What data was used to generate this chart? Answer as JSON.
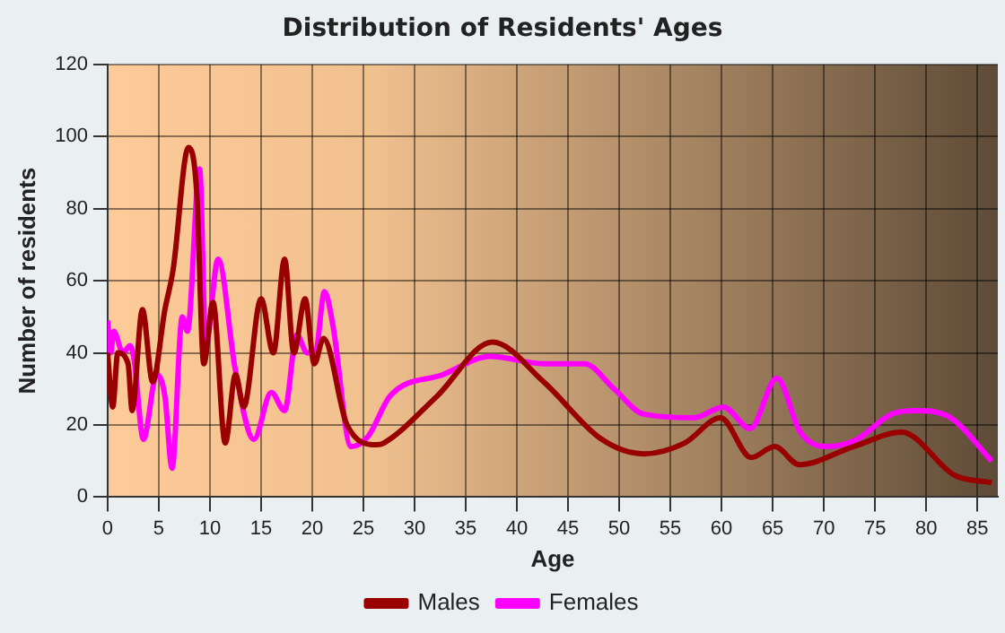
{
  "chart_data": {
    "type": "line",
    "title": "Distribution of Residents' Ages",
    "xlabel": "Age",
    "ylabel": "Number of residents",
    "xlim": [
      0,
      87
    ],
    "xticks": [
      0,
      5,
      10,
      15,
      20,
      25,
      30,
      35,
      40,
      45,
      50,
      55,
      60,
      65,
      70,
      75,
      80,
      85
    ],
    "ylim": [
      0,
      120
    ],
    "yticks": [
      0,
      20,
      40,
      60,
      80,
      100,
      120
    ],
    "grid": true,
    "legend": "bottom",
    "marker": "none",
    "line_style": "solid",
    "series": [
      {
        "name": "Males",
        "color": "#990000",
        "x": [
          0,
          0.5,
          1,
          2,
          2.4,
          3.4,
          4.4,
          5.6,
          6.4,
          7.9,
          8.7,
          9.4,
          10.3,
          11.5,
          12.5,
          13.3,
          15,
          16.2,
          17.3,
          18.2,
          19.3,
          20.2,
          21.1,
          23.4,
          26.3,
          27,
          32.2,
          37.6,
          42.6,
          48.3,
          52.4,
          56.4,
          59.9,
          62.9,
          65.2,
          67.6,
          72.9,
          77.6,
          82.8,
          86.4
        ],
        "values": [
          40,
          25,
          40,
          37,
          24,
          52,
          32,
          52,
          63,
          97,
          85,
          37,
          54,
          15,
          34,
          25,
          55,
          40,
          66,
          40,
          55,
          37,
          44,
          20,
          14.5,
          15,
          28,
          43,
          32,
          16,
          12,
          15,
          22,
          11,
          14,
          9,
          14,
          18,
          6,
          4
        ]
      },
      {
        "name": "Females",
        "color": "#ff00ff",
        "x": [
          0,
          0.3,
          0.6,
          1.5,
          2.2,
          2.6,
          3.5,
          4.8,
          5.6,
          6.3,
          7.3,
          7.8,
          9,
          9.6,
          10.8,
          12.5,
          14.3,
          16,
          17.3,
          18.5,
          19.5,
          20.3,
          21.2,
          22,
          23.8,
          25.5,
          27.6,
          32.8,
          37.4,
          42.6,
          46.6,
          49.5,
          52.4,
          57.3,
          60.2,
          62.8,
          65.4,
          67.7,
          70.3,
          73.2,
          76.6,
          79,
          82.4,
          86.4
        ],
        "values": [
          49,
          40,
          46,
          40,
          42,
          38,
          16,
          34,
          28,
          8,
          50,
          46,
          91,
          42,
          66,
          35,
          16,
          29,
          24,
          45,
          40,
          40,
          57,
          48,
          14,
          17,
          28,
          34,
          39,
          37,
          37,
          30,
          23,
          22,
          25,
          19,
          33,
          18,
          14,
          16,
          23,
          24,
          22,
          10
        ]
      }
    ]
  }
}
